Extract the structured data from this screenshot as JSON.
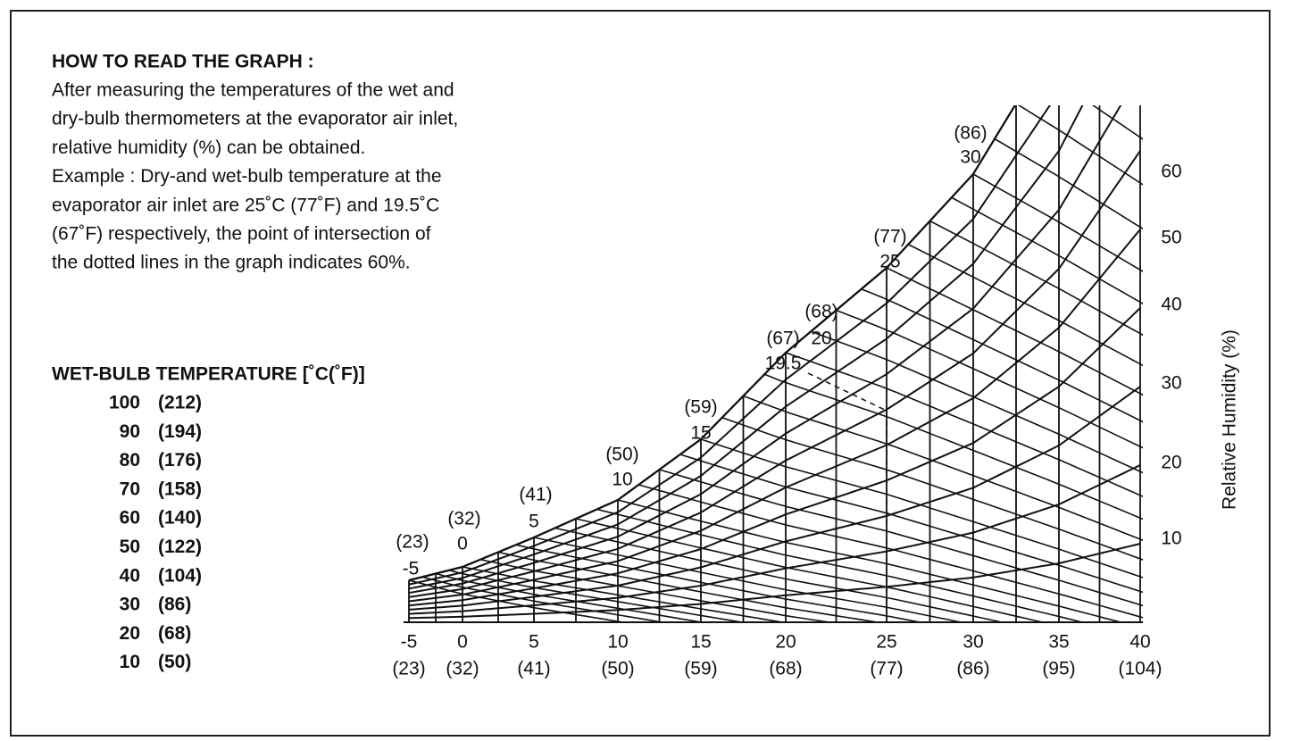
{
  "instructions": {
    "title": "HOW TO READ THE GRAPH :",
    "lines": [
      "After measuring the temperatures of the wet and",
      "dry-bulb thermometers at the evaporator air inlet,",
      "relative humidity (%) can be obtained.",
      "Example : Dry-and wet-bulb temperature at the",
      "evaporator air inlet are 25˚C (77˚F) and 19.5˚C",
      "(67˚F) respectively, the point of intersection of",
      "the dotted lines in the graph indicates 60%."
    ]
  },
  "wet_bulb_table": {
    "title": "WET-BULB TEMPERATURE [˚C(˚F)]",
    "rows": [
      [
        "100",
        "(212)"
      ],
      [
        "90",
        "(194)"
      ],
      [
        "80",
        "(176)"
      ],
      [
        "70",
        "(158)"
      ],
      [
        "60",
        "(140)"
      ],
      [
        "50",
        "(122)"
      ],
      [
        "40",
        "(104)"
      ],
      [
        "30",
        "(86)"
      ],
      [
        "20",
        "(68)"
      ],
      [
        "10",
        "(50)"
      ]
    ]
  },
  "chart": {
    "x_axis_labels": [
      [
        "-5",
        "(23)"
      ],
      [
        "0",
        "(32)"
      ],
      [
        "5",
        "(41)"
      ],
      [
        "10",
        "(50)"
      ],
      [
        "15",
        "(59)"
      ],
      [
        "20",
        "(68)"
      ],
      [
        "25",
        "(77)"
      ],
      [
        "30",
        "(86)"
      ],
      [
        "35",
        "(95)"
      ],
      [
        "40",
        "(104)"
      ]
    ],
    "saturation_labels": [
      [
        "(23)",
        "-5"
      ],
      [
        "(32)",
        "0"
      ],
      [
        "(41)",
        "5"
      ],
      [
        "(50)",
        "10"
      ],
      [
        "(59)",
        "15"
      ],
      [
        "(67)",
        "19.5"
      ],
      [
        "(68)",
        "20"
      ],
      [
        "(77)",
        "25"
      ],
      [
        "(86)",
        "30"
      ]
    ],
    "rh_labels": [
      "60",
      "50",
      "40",
      "30",
      "20",
      "10"
    ],
    "rh_axis_title": "Relative Humidity (%)"
  }
}
